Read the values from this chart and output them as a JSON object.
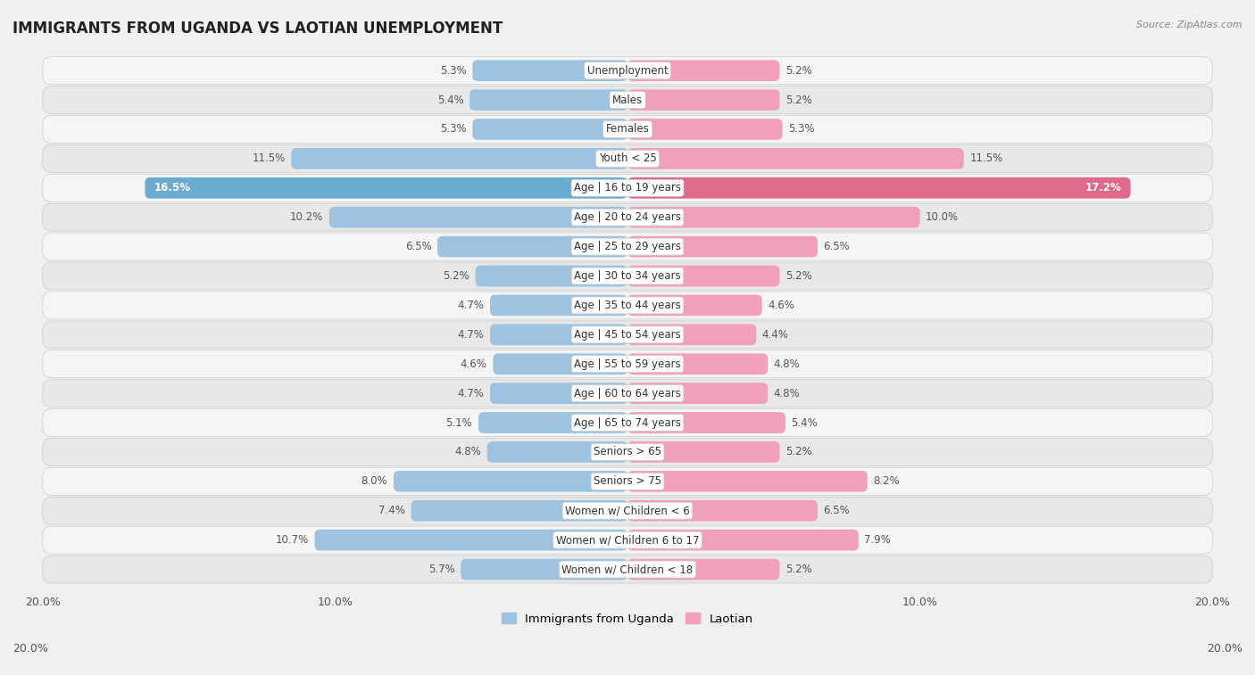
{
  "title": "IMMIGRANTS FROM UGANDA VS LAOTIAN UNEMPLOYMENT",
  "source": "Source: ZipAtlas.com",
  "categories": [
    "Unemployment",
    "Males",
    "Females",
    "Youth < 25",
    "Age | 16 to 19 years",
    "Age | 20 to 24 years",
    "Age | 25 to 29 years",
    "Age | 30 to 34 years",
    "Age | 35 to 44 years",
    "Age | 45 to 54 years",
    "Age | 55 to 59 years",
    "Age | 60 to 64 years",
    "Age | 65 to 74 years",
    "Seniors > 65",
    "Seniors > 75",
    "Women w/ Children < 6",
    "Women w/ Children 6 to 17",
    "Women w/ Children < 18"
  ],
  "uganda_values": [
    5.3,
    5.4,
    5.3,
    11.5,
    16.5,
    10.2,
    6.5,
    5.2,
    4.7,
    4.7,
    4.6,
    4.7,
    5.1,
    4.8,
    8.0,
    7.4,
    10.7,
    5.7
  ],
  "laotian_values": [
    5.2,
    5.2,
    5.3,
    11.5,
    17.2,
    10.0,
    6.5,
    5.2,
    4.6,
    4.4,
    4.8,
    4.8,
    5.4,
    5.2,
    8.2,
    6.5,
    7.9,
    5.2
  ],
  "uganda_color": "#9dc3e0",
  "laotian_color": "#f0a0b8",
  "highlight_uganda_color": "#6aabcf",
  "highlight_laotian_color": "#e06888",
  "row_color_even": "#f5f5f5",
  "row_color_odd": "#e8e8e8",
  "row_border_color": "#cccccc",
  "background_color": "#f0f0f0",
  "max_value": 20.0,
  "legend_uganda": "Immigrants from Uganda",
  "legend_laotian": "Laotian"
}
